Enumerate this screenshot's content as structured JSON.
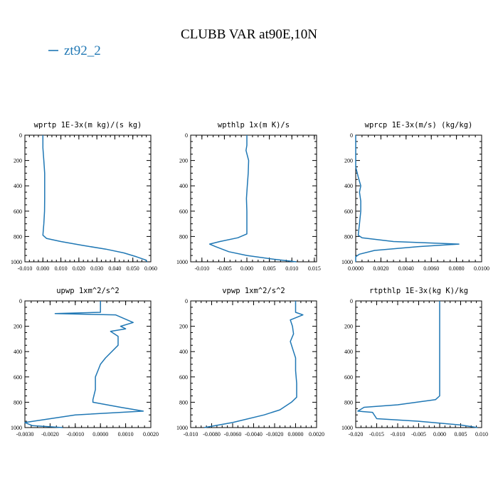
{
  "figure": {
    "title": "CLUBB VAR at90E,10N",
    "legend": {
      "label": "zt92_2",
      "color": "#1f77b4"
    }
  },
  "chart_data": [
    {
      "type": "line",
      "title": "wprtp  1E-3x(m kg)/(s kg)",
      "xlim": [
        -0.01,
        0.06
      ],
      "ylim": [
        1000,
        0
      ],
      "xticks": [
        "-0.010",
        "0.000",
        "0.010",
        "0.020",
        "0.030",
        "0.040",
        "0.050",
        "0.060"
      ],
      "yticks": [
        "0",
        "200",
        "400",
        "600",
        "800",
        "1000"
      ],
      "series": [
        {
          "name": "zt92_2",
          "x": [
            0.0,
            0.0,
            0.0005,
            0.001,
            0.001,
            0.001,
            0.0009,
            0.0005,
            0.0,
            0.002,
            0.01,
            0.022,
            0.035,
            0.045,
            0.052,
            0.057,
            0.058
          ],
          "y": [
            0,
            100,
            200,
            300,
            400,
            500,
            600,
            700,
            790,
            815,
            840,
            870,
            900,
            930,
            960,
            985,
            1000
          ]
        }
      ]
    },
    {
      "type": "line",
      "title": "wpthlp  1x(m K)/s",
      "xlim": [
        -0.0125,
        0.0155
      ],
      "ylim": [
        1000,
        0
      ],
      "xticks": [
        "-0.010",
        "-0.005",
        "0.000",
        "0.005",
        "0.010",
        "0.015"
      ],
      "yticks": [
        "0",
        "200",
        "400",
        "600",
        "800",
        "1000"
      ],
      "series": [
        {
          "name": "zt92_2",
          "x": [
            0.0,
            0.0,
            -0.0002,
            0.0004,
            0.0003,
            0.0001,
            -0.0001,
            0.0,
            0.0,
            0.0,
            -0.002,
            -0.006,
            -0.0083,
            -0.007,
            -0.004,
            0.0,
            0.006,
            0.011
          ],
          "y": [
            0,
            80,
            120,
            200,
            300,
            400,
            500,
            600,
            700,
            780,
            810,
            840,
            860,
            880,
            920,
            950,
            980,
            1000
          ]
        }
      ]
    },
    {
      "type": "line",
      "title": "wprcp  1E-3x(m/s) (kg/kg)",
      "xlim": [
        0.0,
        0.01
      ],
      "ylim": [
        1000,
        0
      ],
      "xticks": [
        "0.0000",
        "0.0020",
        "0.0040",
        "0.0060",
        "0.0080",
        "0.0100"
      ],
      "yticks": [
        "0",
        "200",
        "400",
        "600",
        "800",
        "1000"
      ],
      "series": [
        {
          "name": "zt92_2",
          "x": [
            0.0,
            0.0,
            0.0,
            0.0002,
            0.0004,
            0.0003,
            0.0004,
            0.0004,
            0.0003,
            0.0002,
            0.0005,
            0.003,
            0.0082,
            0.005,
            0.0015,
            0.0003,
            0.0,
            0.0
          ],
          "y": [
            0,
            150,
            250,
            330,
            400,
            450,
            520,
            600,
            700,
            790,
            810,
            840,
            860,
            880,
            910,
            940,
            960,
            1000
          ]
        }
      ]
    },
    {
      "type": "line",
      "title": "upwp  1xm^2/s^2",
      "xlim": [
        -0.003,
        0.002
      ],
      "ylim": [
        1000,
        0
      ],
      "xticks": [
        "-0.0030",
        "-0.0020",
        "-0.0010",
        "0.0000",
        "0.0010",
        "0.0020"
      ],
      "yticks": [
        "0",
        "200",
        "400",
        "600",
        "800",
        "1000"
      ],
      "series": [
        {
          "name": "zt92_2",
          "x": [
            0.0,
            0.0,
            -0.0018,
            0.0006,
            0.0013,
            0.0008,
            0.001,
            0.0004,
            0.0007,
            0.0007,
            0.0002,
            0.0,
            -0.0001,
            -0.0002,
            -0.0002,
            -0.0003,
            -0.0003,
            0.0008,
            0.0017,
            -0.001,
            -0.003,
            -0.0027,
            -0.0015
          ],
          "y": [
            0,
            90,
            100,
            110,
            170,
            200,
            220,
            240,
            280,
            350,
            450,
            500,
            550,
            600,
            700,
            780,
            800,
            840,
            870,
            900,
            960,
            985,
            1000
          ]
        }
      ]
    },
    {
      "type": "line",
      "title": "vpwp  1xm^2/s^2",
      "xlim": [
        -0.01,
        0.002
      ],
      "ylim": [
        1000,
        0
      ],
      "xticks": [
        "-0.010",
        "-0.0080",
        "-0.0060",
        "-0.0040",
        "-0.0020",
        "0.0000",
        "0.0020"
      ],
      "yticks": [
        "0",
        "200",
        "400",
        "600",
        "800",
        "1000"
      ],
      "series": [
        {
          "name": "zt92_2",
          "x": [
            0.0,
            0.0,
            0.0007,
            -0.0005,
            -0.0003,
            -0.0002,
            -0.0005,
            -0.0002,
            0.0,
            0.0,
            0.0001,
            0.0001,
            -0.0004,
            -0.0015,
            -0.003,
            -0.006,
            -0.0087
          ],
          "y": [
            0,
            90,
            110,
            150,
            200,
            260,
            320,
            400,
            450,
            550,
            650,
            760,
            800,
            860,
            900,
            960,
            1000
          ]
        }
      ]
    },
    {
      "type": "line",
      "title": "rtpthlp  1E-3x(kg K)/kg",
      "xlim": [
        -0.02,
        0.01
      ],
      "ylim": [
        1000,
        0
      ],
      "xticks": [
        "-0.020",
        "-0.015",
        "-0.010",
        "-0.005",
        "0.000",
        "0.005",
        "0.010"
      ],
      "yticks": [
        "0",
        "200",
        "400",
        "600",
        "800",
        "1000"
      ],
      "series": [
        {
          "name": "zt92_2",
          "x": [
            0.0,
            0.0,
            0.0,
            0.0,
            0.0,
            0.0,
            -0.001,
            -0.01,
            -0.018,
            -0.0195,
            -0.016,
            -0.015,
            -0.005,
            0.005,
            0.009
          ],
          "y": [
            0,
            200,
            400,
            600,
            700,
            750,
            780,
            820,
            840,
            870,
            880,
            930,
            950,
            980,
            1000
          ]
        }
      ]
    }
  ]
}
